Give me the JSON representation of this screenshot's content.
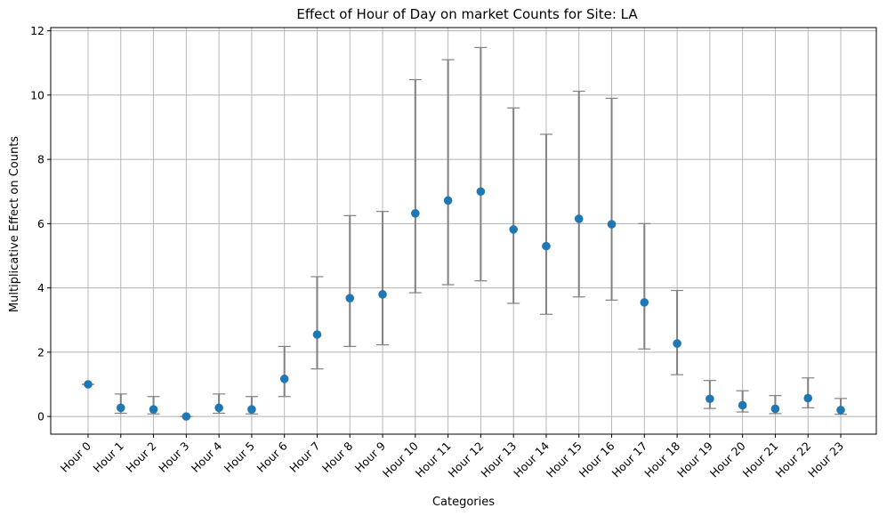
{
  "chart_data": {
    "type": "scatter",
    "title": "Effect of Hour of Day on market Counts for Site: LA",
    "xlabel": "Categories",
    "ylabel": "Multiplicative Effect on Counts",
    "ylim": [
      -0.55,
      12.1
    ],
    "yticks": [
      0,
      2,
      4,
      6,
      8,
      10,
      12
    ],
    "grid": true,
    "categories": [
      "Hour 0",
      "Hour 1",
      "Hour 2",
      "Hour 3",
      "Hour 4",
      "Hour 5",
      "Hour 6",
      "Hour 7",
      "Hour 8",
      "Hour 9",
      "Hour 10",
      "Hour 11",
      "Hour 12",
      "Hour 13",
      "Hour 14",
      "Hour 15",
      "Hour 16",
      "Hour 17",
      "Hour 18",
      "Hour 19",
      "Hour 20",
      "Hour 21",
      "Hour 22",
      "Hour 23"
    ],
    "series": [
      {
        "values": [
          1.0,
          0.27,
          0.22,
          0.0,
          0.27,
          0.22,
          1.17,
          2.55,
          3.68,
          3.8,
          6.32,
          6.72,
          7.0,
          5.82,
          5.3,
          6.15,
          5.98,
          3.55,
          2.27,
          0.55,
          0.35,
          0.24,
          0.57,
          0.2
        ],
        "lower": [
          1.0,
          0.1,
          0.08,
          0.0,
          0.1,
          0.08,
          0.62,
          1.48,
          2.18,
          2.23,
          3.85,
          4.1,
          4.22,
          3.52,
          3.18,
          3.72,
          3.62,
          2.1,
          1.3,
          0.25,
          0.14,
          0.09,
          0.27,
          0.07
        ],
        "upper": [
          1.0,
          0.7,
          0.62,
          0.0,
          0.7,
          0.62,
          2.18,
          4.35,
          6.25,
          6.38,
          10.48,
          11.1,
          11.48,
          9.6,
          8.78,
          10.12,
          9.9,
          6.0,
          3.92,
          1.12,
          0.8,
          0.65,
          1.2,
          0.56
        ],
        "marker_color": "#1f77b4",
        "errorbar_color": "#808080"
      }
    ]
  }
}
